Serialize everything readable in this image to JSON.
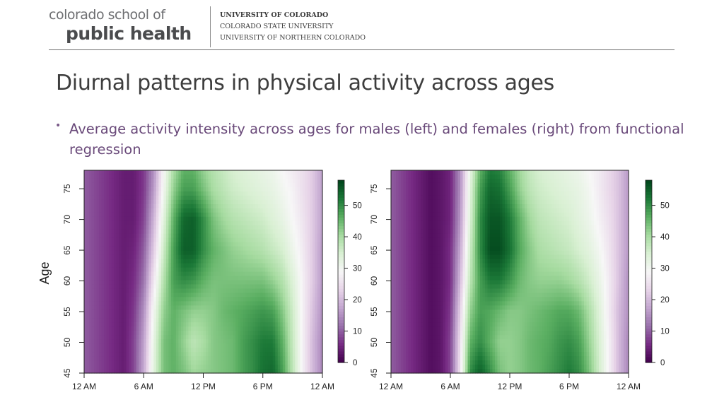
{
  "header": {
    "logo_line1": "colorado school of",
    "logo_line2": "public health",
    "universities": [
      "UNIVERSITY OF COLORADO",
      "COLORADO STATE UNIVERSITY",
      "UNIVERSITY OF NORTHERN COLORADO"
    ]
  },
  "slide": {
    "title": "Diurnal patterns in physical activity across ages",
    "bullet": "Average activity intensity across ages for males (left) and females (right) from functional regression"
  },
  "colors": {
    "low": "#40004b",
    "mid": "#f7f7f7",
    "high": "#00441b",
    "text_title": "#3d3d3d",
    "text_bullet": "#6a4a7a"
  },
  "chart_data": [
    {
      "type": "heatmap",
      "name": "males",
      "ylabel": "Age",
      "xlabel": "",
      "x_ticks": [
        "12 AM",
        "6 AM",
        "12 PM",
        "6 PM",
        "12 AM"
      ],
      "x_range_hours": [
        0,
        24
      ],
      "y_ticks": [
        45,
        50,
        55,
        60,
        65,
        70,
        75
      ],
      "ylim": [
        45,
        78
      ],
      "colorbar": {
        "ticks": [
          0,
          10,
          20,
          30,
          40,
          50
        ],
        "range": [
          0,
          58
        ]
      },
      "ages": [
        45,
        50,
        55,
        60,
        65,
        70,
        75,
        78
      ],
      "hours": [
        0,
        2,
        4,
        5,
        6,
        7,
        8,
        9,
        10,
        11,
        12,
        13,
        14,
        15,
        16,
        17,
        18,
        19,
        20,
        21,
        22,
        23,
        24
      ],
      "values": [
        [
          10,
          7,
          4,
          8,
          18,
          33,
          44,
          46,
          44,
          41,
          42,
          43,
          44,
          45,
          48,
          50,
          53,
          54,
          48,
          38,
          28,
          20,
          14
        ],
        [
          10,
          7,
          4,
          8,
          17,
          32,
          44,
          46,
          42,
          38,
          40,
          43,
          44,
          45,
          48,
          50,
          52,
          52,
          46,
          37,
          28,
          20,
          14
        ],
        [
          10,
          7,
          4,
          7,
          15,
          30,
          42,
          46,
          44,
          42,
          42,
          43,
          45,
          46,
          47,
          48,
          49,
          48,
          43,
          36,
          28,
          21,
          15
        ],
        [
          10,
          7,
          4,
          6,
          12,
          26,
          39,
          48,
          50,
          49,
          46,
          44,
          44,
          44,
          44,
          44,
          44,
          42,
          39,
          34,
          28,
          22,
          16
        ],
        [
          10,
          7,
          4,
          5,
          10,
          22,
          36,
          48,
          55,
          55,
          50,
          46,
          44,
          42,
          41,
          40,
          39,
          37,
          35,
          31,
          27,
          22,
          16
        ],
        [
          10,
          7,
          4,
          4,
          8,
          19,
          33,
          46,
          54,
          55,
          50,
          44,
          41,
          39,
          38,
          37,
          36,
          34,
          32,
          29,
          26,
          22,
          17
        ],
        [
          10,
          7,
          4,
          4,
          7,
          16,
          30,
          42,
          48,
          48,
          44,
          40,
          38,
          36,
          35,
          34,
          33,
          32,
          30,
          28,
          25,
          22,
          17
        ],
        [
          10,
          7,
          4,
          4,
          7,
          15,
          29,
          40,
          46,
          46,
          42,
          39,
          37,
          35,
          34,
          33,
          32,
          31,
          29,
          27,
          25,
          22,
          17
        ]
      ]
    },
    {
      "type": "heatmap",
      "name": "females",
      "ylabel": "",
      "xlabel": "",
      "x_ticks": [
        "12 AM",
        "6 AM",
        "12 PM",
        "6 PM",
        "12 AM"
      ],
      "x_range_hours": [
        0,
        24
      ],
      "y_ticks": [
        45,
        50,
        55,
        60,
        65,
        70,
        75
      ],
      "ylim": [
        45,
        78
      ],
      "colorbar": {
        "ticks": [
          0,
          10,
          20,
          30,
          40,
          50
        ],
        "range": [
          0,
          58
        ]
      },
      "ages": [
        45,
        50,
        55,
        60,
        65,
        70,
        75,
        78
      ],
      "hours": [
        0,
        2,
        4,
        5,
        6,
        7,
        8,
        9,
        10,
        11,
        12,
        13,
        14,
        15,
        16,
        17,
        18,
        19,
        20,
        21,
        22,
        23,
        24
      ],
      "values": [
        [
          10,
          6,
          2,
          3,
          8,
          26,
          50,
          55,
          50,
          44,
          42,
          43,
          45,
          46,
          48,
          50,
          52,
          50,
          44,
          36,
          28,
          20,
          14
        ],
        [
          10,
          6,
          2,
          3,
          8,
          25,
          46,
          50,
          46,
          42,
          42,
          43,
          45,
          46,
          47,
          49,
          50,
          48,
          42,
          35,
          28,
          20,
          14
        ],
        [
          10,
          6,
          2,
          3,
          7,
          23,
          42,
          48,
          47,
          45,
          43,
          43,
          44,
          45,
          46,
          47,
          47,
          45,
          40,
          34,
          27,
          20,
          15
        ],
        [
          10,
          6,
          2,
          3,
          6,
          20,
          38,
          48,
          52,
          52,
          49,
          45,
          43,
          42,
          42,
          42,
          41,
          39,
          36,
          32,
          27,
          21,
          15
        ],
        [
          10,
          6,
          2,
          3,
          6,
          18,
          36,
          50,
          57,
          57,
          53,
          47,
          43,
          40,
          39,
          38,
          37,
          35,
          33,
          30,
          26,
          21,
          16
        ],
        [
          10,
          6,
          2,
          3,
          5,
          16,
          34,
          50,
          56,
          56,
          52,
          46,
          41,
          38,
          37,
          36,
          35,
          33,
          31,
          28,
          25,
          21,
          16
        ],
        [
          10,
          6,
          2,
          3,
          5,
          15,
          33,
          48,
          54,
          53,
          48,
          42,
          38,
          36,
          35,
          34,
          33,
          32,
          30,
          27,
          24,
          21,
          16
        ],
        [
          10,
          6,
          2,
          3,
          5,
          15,
          32,
          46,
          52,
          51,
          46,
          41,
          37,
          35,
          34,
          33,
          32,
          31,
          29,
          27,
          24,
          21,
          16
        ]
      ]
    }
  ]
}
